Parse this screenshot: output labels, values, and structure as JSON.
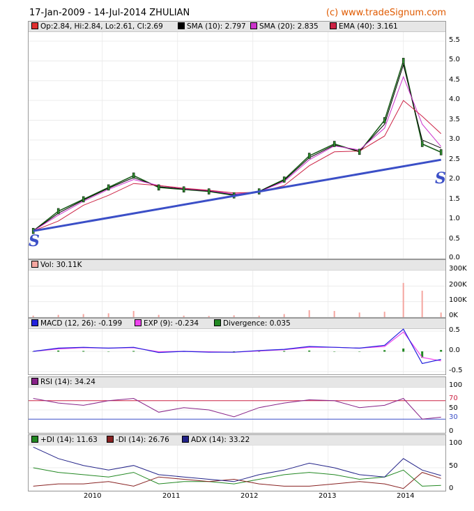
{
  "header": {
    "title": "17-Jan-2009 - 14-Jul-2014 ZHULIAN",
    "copyright": "(c) www.tradeSignum.com"
  },
  "price_panel": {
    "legend": [
      {
        "label": "Op:2.84, Hi:2.84, Lo:2.61, Cl:2.69",
        "color": "#e03030"
      },
      {
        "label": "SMA (10): 2.797",
        "color": "#000000"
      },
      {
        "label": "SMA (20): 2.835",
        "color": "#cc33cc"
      },
      {
        "label": "EMA (40): 3.161",
        "color": "#cc2244"
      }
    ],
    "yticks": [
      "5.5",
      "5.0",
      "4.5",
      "4.0",
      "3.5",
      "3.0",
      "2.5",
      "2.0",
      "1.5",
      "1.0",
      "0.5",
      "0.0"
    ],
    "support_marks": [
      "S",
      "S"
    ]
  },
  "volume_panel": {
    "legend": [
      {
        "label": "Vol: 30.11K",
        "color": "#f4a6a0"
      }
    ],
    "yticks": [
      "300K",
      "200K",
      "100K",
      "0K"
    ]
  },
  "macd_panel": {
    "legend": [
      {
        "label": "MACD (12, 26): -0.199",
        "color": "#2222dd"
      },
      {
        "label": "EXP (9): -0.234",
        "color": "#ee44ee"
      },
      {
        "label": "Divergence: 0.035",
        "color": "#228822"
      }
    ],
    "yticks": [
      "0.5",
      "0.0",
      "-0.5"
    ]
  },
  "rsi_panel": {
    "legend": [
      {
        "label": "RSI (14): 34.24",
        "color": "#882288"
      }
    ],
    "yticks": [
      "100",
      "70",
      "50",
      "30",
      "0"
    ]
  },
  "dmi_panel": {
    "legend": [
      {
        "label": "+DI (14): 11.63",
        "color": "#228822"
      },
      {
        "label": "-DI (14): 26.76",
        "color": "#882222"
      },
      {
        "label": "ADX (14): 33.22",
        "color": "#222288"
      }
    ],
    "yticks": [
      "100",
      "50",
      "0"
    ]
  },
  "xaxis": [
    "2010",
    "2011",
    "2012",
    "2013",
    "2014"
  ],
  "chart_data": [
    {
      "type": "line",
      "title": "17-Jan-2009 - 14-Jul-2014 ZHULIAN",
      "x": [
        "2009-02",
        "2009-06",
        "2009-10",
        "2010-02",
        "2010-06",
        "2010-10",
        "2011-02",
        "2011-06",
        "2011-10",
        "2012-02",
        "2012-06",
        "2012-10",
        "2013-02",
        "2013-06",
        "2013-10",
        "2014-01",
        "2014-04",
        "2014-07"
      ],
      "series": [
        {
          "name": "Close",
          "values": [
            0.7,
            1.2,
            1.5,
            1.8,
            2.1,
            1.8,
            1.75,
            1.7,
            1.6,
            1.7,
            2.0,
            2.6,
            2.9,
            2.7,
            3.5,
            5.0,
            2.9,
            2.69
          ]
        },
        {
          "name": "SMA (10)",
          "values": [
            0.7,
            1.15,
            1.48,
            1.78,
            2.05,
            1.82,
            1.76,
            1.71,
            1.62,
            1.7,
            1.98,
            2.55,
            2.87,
            2.72,
            3.4,
            4.9,
            3.0,
            2.797
          ]
        },
        {
          "name": "SMA (20)",
          "values": [
            0.7,
            1.1,
            1.45,
            1.75,
            2.0,
            1.85,
            1.77,
            1.72,
            1.63,
            1.69,
            1.95,
            2.5,
            2.85,
            2.75,
            3.3,
            4.6,
            3.4,
            2.835
          ]
        },
        {
          "name": "EMA (40)",
          "values": [
            0.7,
            0.95,
            1.35,
            1.6,
            1.9,
            1.85,
            1.78,
            1.73,
            1.66,
            1.68,
            1.85,
            2.35,
            2.7,
            2.72,
            3.1,
            4.0,
            3.6,
            3.161
          ]
        }
      ],
      "trendline": {
        "from": [
          "2009-02",
          0.7
        ],
        "to": [
          "2014-07",
          2.5
        ]
      },
      "ylim": [
        0,
        5.5
      ]
    },
    {
      "type": "bar",
      "series": [
        {
          "name": "Vol",
          "values": [
            10,
            15,
            20,
            25,
            40,
            15,
            10,
            8,
            12,
            10,
            20,
            45,
            40,
            30,
            35,
            220,
            170,
            30
          ]
        }
      ],
      "x": [
        "2009-02",
        "2009-06",
        "2009-10",
        "2010-02",
        "2010-06",
        "2010-10",
        "2011-02",
        "2011-06",
        "2011-10",
        "2012-02",
        "2012-06",
        "2012-10",
        "2013-02",
        "2013-06",
        "2013-10",
        "2014-01",
        "2014-04",
        "2014-07"
      ],
      "ylim": [
        0,
        300
      ]
    },
    {
      "type": "line",
      "series": [
        {
          "name": "MACD (12, 26)",
          "values": [
            0.0,
            0.08,
            0.1,
            0.08,
            0.1,
            -0.03,
            0.0,
            -0.02,
            -0.02,
            0.02,
            0.05,
            0.12,
            0.1,
            0.08,
            0.15,
            0.55,
            -0.3,
            -0.199
          ]
        },
        {
          "name": "EXP (9)",
          "values": [
            0.0,
            0.06,
            0.09,
            0.08,
            0.09,
            -0.01,
            0.0,
            -0.01,
            -0.02,
            0.01,
            0.04,
            0.1,
            0.1,
            0.08,
            0.12,
            0.48,
            -0.15,
            -0.234
          ]
        },
        {
          "name": "Divergence",
          "values": [
            0.0,
            0.02,
            0.01,
            0.0,
            0.01,
            -0.02,
            0.0,
            -0.01,
            0.0,
            0.01,
            0.01,
            0.02,
            0.0,
            0.0,
            0.03,
            0.07,
            -0.15,
            0.035
          ]
        }
      ],
      "ylim": [
        -0.5,
        0.5
      ]
    },
    {
      "type": "line",
      "series": [
        {
          "name": "RSI (14)",
          "values": [
            75,
            65,
            60,
            70,
            75,
            45,
            55,
            50,
            35,
            55,
            65,
            72,
            70,
            55,
            60,
            75,
            30,
            34.24
          ]
        }
      ],
      "ylim": [
        0,
        100
      ]
    },
    {
      "type": "line",
      "series": [
        {
          "name": "+DI (14)",
          "values": [
            50,
            40,
            35,
            30,
            40,
            15,
            20,
            20,
            15,
            25,
            35,
            40,
            35,
            25,
            30,
            45,
            10,
            11.63
          ]
        },
        {
          "name": "-DI (14)",
          "values": [
            10,
            15,
            15,
            20,
            10,
            30,
            25,
            20,
            25,
            15,
            10,
            10,
            15,
            20,
            15,
            5,
            40,
            26.76
          ]
        },
        {
          "name": "ADX (14)",
          "values": [
            95,
            70,
            55,
            45,
            55,
            35,
            30,
            25,
            20,
            35,
            45,
            60,
            50,
            35,
            30,
            70,
            45,
            33.22
          ]
        }
      ],
      "ylim": [
        0,
        100
      ]
    }
  ]
}
